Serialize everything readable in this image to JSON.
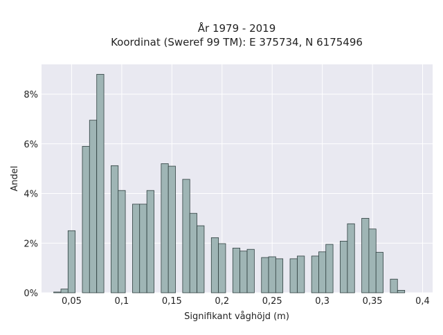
{
  "chart_data": {
    "type": "bar",
    "title_line1": "År 1979 - 2019",
    "title_line2": "Koordinat (Sweref 99 TM): E 375734, N 6175496",
    "xlabel": "Signifikant våghöjd (m)",
    "ylabel": "Andel",
    "xlim": [
      0.02,
      0.41
    ],
    "ylim": [
      0,
      9.2
    ],
    "x_ticks": [
      {
        "value": 0.05,
        "label": "0,05"
      },
      {
        "value": 0.1,
        "label": "0,1"
      },
      {
        "value": 0.15,
        "label": "0,15"
      },
      {
        "value": 0.2,
        "label": "0,2"
      },
      {
        "value": 0.25,
        "label": "0,25"
      },
      {
        "value": 0.3,
        "label": "0,3"
      },
      {
        "value": 0.35,
        "label": "0,35"
      },
      {
        "value": 0.4,
        "label": "0,4"
      }
    ],
    "y_ticks": [
      {
        "value": 0,
        "label": "0%"
      },
      {
        "value": 2,
        "label": "2%"
      },
      {
        "value": 4,
        "label": "4%"
      },
      {
        "value": 6,
        "label": "6%"
      },
      {
        "value": 8,
        "label": "8%"
      }
    ],
    "bin_width": 0.00714,
    "x": [
      0.0357,
      0.0429,
      0.05,
      0.0571,
      0.0643,
      0.0714,
      0.0786,
      0.0857,
      0.0929,
      0.1,
      0.1071,
      0.1143,
      0.1214,
      0.1286,
      0.1357,
      0.1429,
      0.15,
      0.1571,
      0.1643,
      0.1714,
      0.1786,
      0.1857,
      0.1929,
      0.2,
      0.2071,
      0.2143,
      0.2214,
      0.2286,
      0.2357,
      0.2429,
      0.25,
      0.2571,
      0.2643,
      0.2714,
      0.2786,
      0.2857,
      0.2929,
      0.3,
      0.3071,
      0.3143,
      0.3214,
      0.3286,
      0.3357,
      0.3429,
      0.35,
      0.3571,
      0.3643,
      0.3714,
      0.3786
    ],
    "values": [
      0.03,
      0.15,
      2.5,
      0,
      5.9,
      6.95,
      8.8,
      0,
      5.12,
      4.12,
      0,
      3.57,
      3.57,
      4.12,
      0,
      5.2,
      5.1,
      0,
      4.57,
      3.2,
      2.7,
      0,
      2.22,
      1.98,
      0,
      1.8,
      1.68,
      1.75,
      0,
      1.42,
      1.45,
      1.37,
      0,
      1.37,
      1.48,
      0,
      1.48,
      1.65,
      1.95,
      0,
      2.08,
      2.78,
      0,
      3.0,
      2.57,
      1.63,
      0,
      0.55,
      0.1
    ],
    "bar_color": "#9fb5b5",
    "bar_edge_color": "#2f3f3f",
    "plot_background": "#e9e9f1",
    "grid": true
  }
}
